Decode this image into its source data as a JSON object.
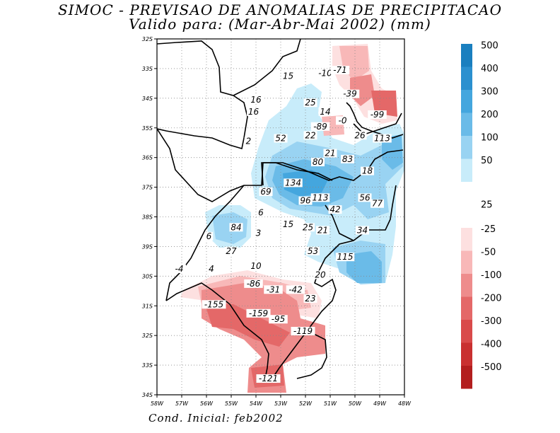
{
  "title": "SIMOC - PREVISAO DE ANOMALIAS DE PRECIPITACAO",
  "subtitle": "Valido para: (Mar-Abr-Mai 2002) (mm)",
  "footer": "Cond. Inicial: feb2002",
  "chart_data": {
    "type": "heatmap",
    "xlim": [
      -58,
      -48
    ],
    "ylim": [
      -34,
      -22
    ],
    "lon_ticks": [
      "58W",
      "57W",
      "56W",
      "55W",
      "54W",
      "53W",
      "52W",
      "51W",
      "50W",
      "49W",
      "48W"
    ],
    "lat_ticks": [
      "32S",
      "33S",
      "34S",
      "35S",
      "36S",
      "37S",
      "38S",
      "39S",
      "30S",
      "31S",
      "32S",
      "33S",
      "34S"
    ],
    "positive_scale": {
      "labels": [
        "500",
        "400",
        "300",
        "200",
        "100",
        "50",
        "25"
      ],
      "colors": [
        "#1a7fbf",
        "#2b90cf",
        "#44a6de",
        "#6abbe8",
        "#99d3f2",
        "#c8ecfa",
        "#ffffff"
      ]
    },
    "negative_scale": {
      "labels": [
        "-25",
        "-50",
        "-100",
        "-200",
        "-300",
        "-400",
        "-500"
      ],
      "colors": [
        "#fde0e0",
        "#f8b8b8",
        "#ee8c8c",
        "#e46868",
        "#d94a4a",
        "#c93030",
        "#b31e1e"
      ]
    },
    "grid": true,
    "contour_labels": [
      {
        "text": "-10",
        "lon": -51.2,
        "lat": -23.2
      },
      {
        "text": "-71",
        "lon": -50.6,
        "lat": -23.1
      },
      {
        "text": "15",
        "lon": -52.7,
        "lat": -23.3
      },
      {
        "text": "-39",
        "lon": -50.2,
        "lat": -23.9
      },
      {
        "text": "16",
        "lon": -54.0,
        "lat": -24.1
      },
      {
        "text": "25",
        "lon": -51.8,
        "lat": -24.2
      },
      {
        "text": "16",
        "lon": -54.1,
        "lat": -24.5
      },
      {
        "text": "14",
        "lon": -51.2,
        "lat": -24.5
      },
      {
        "text": "-99",
        "lon": -49.1,
        "lat": -24.6
      },
      {
        "text": "-0",
        "lon": -50.5,
        "lat": -24.8
      },
      {
        "text": "-89",
        "lon": -51.4,
        "lat": -25.0
      },
      {
        "text": "26",
        "lon": -49.8,
        "lat": -25.3
      },
      {
        "text": "113",
        "lon": -48.9,
        "lat": -25.4
      },
      {
        "text": "52",
        "lon": -53.0,
        "lat": -25.4
      },
      {
        "text": "22",
        "lon": -51.8,
        "lat": -25.3
      },
      {
        "text": "2",
        "lon": -54.3,
        "lat": -25.5
      },
      {
        "text": "21",
        "lon": -51.0,
        "lat": -25.9
      },
      {
        "text": "80",
        "lon": -51.5,
        "lat": -26.2
      },
      {
        "text": "83",
        "lon": -50.3,
        "lat": -26.1
      },
      {
        "text": "18",
        "lon": -49.5,
        "lat": -26.5
      },
      {
        "text": "134",
        "lon": -52.5,
        "lat": -26.9
      },
      {
        "text": "69",
        "lon": -53.6,
        "lat": -27.2
      },
      {
        "text": "96",
        "lon": -52.0,
        "lat": -27.5
      },
      {
        "text": "113",
        "lon": -51.4,
        "lat": -27.4
      },
      {
        "text": "56",
        "lon": -49.6,
        "lat": -27.4
      },
      {
        "text": "77",
        "lon": -49.1,
        "lat": -27.6
      },
      {
        "text": "42",
        "lon": -50.8,
        "lat": -27.8
      },
      {
        "text": "6",
        "lon": -53.8,
        "lat": -27.9
      },
      {
        "text": "84",
        "lon": -54.8,
        "lat": -28.4
      },
      {
        "text": "15",
        "lon": -52.7,
        "lat": -28.3
      },
      {
        "text": "25",
        "lon": -51.9,
        "lat": -28.4
      },
      {
        "text": "21",
        "lon": -51.3,
        "lat": -28.5
      },
      {
        "text": "34",
        "lon": -49.7,
        "lat": -28.5
      },
      {
        "text": "3",
        "lon": -53.9,
        "lat": -28.6
      },
      {
        "text": "6",
        "lon": -55.9,
        "lat": -28.7
      },
      {
        "text": "53",
        "lon": -51.7,
        "lat": -29.2
      },
      {
        "text": "27",
        "lon": -55.0,
        "lat": -29.2
      },
      {
        "text": "115",
        "lon": -50.4,
        "lat": -29.4
      },
      {
        "text": "10",
        "lon": -54.0,
        "lat": -29.7
      },
      {
        "text": "-4",
        "lon": -57.1,
        "lat": -29.8
      },
      {
        "text": "4",
        "lon": -55.8,
        "lat": -29.8
      },
      {
        "text": "20",
        "lon": -51.4,
        "lat": -30.0
      },
      {
        "text": "-86",
        "lon": -54.1,
        "lat": -30.3
      },
      {
        "text": "-31",
        "lon": -53.3,
        "lat": -30.5
      },
      {
        "text": "-42",
        "lon": -52.4,
        "lat": -30.5
      },
      {
        "text": "23",
        "lon": -51.8,
        "lat": -30.8
      },
      {
        "text": "-155",
        "lon": -55.7,
        "lat": -31.0
      },
      {
        "text": "-159",
        "lon": -53.9,
        "lat": -31.3
      },
      {
        "text": "-95",
        "lon": -53.1,
        "lat": -31.5
      },
      {
        "text": "-119",
        "lon": -52.1,
        "lat": -31.9
      },
      {
        "text": "-121",
        "lon": -53.5,
        "lat": -33.5
      }
    ]
  }
}
